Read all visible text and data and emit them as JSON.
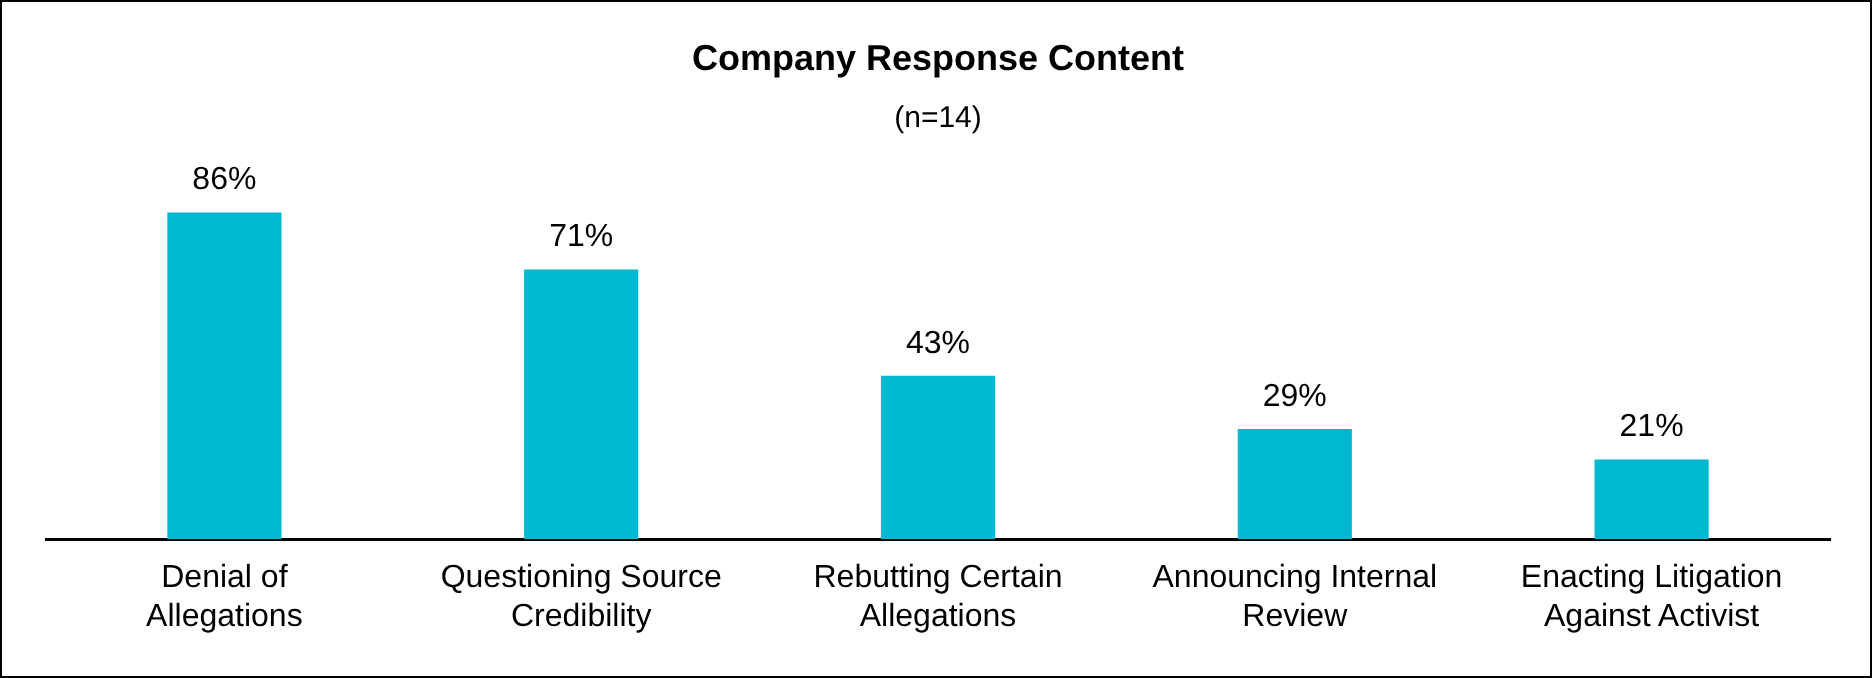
{
  "chart_data": {
    "type": "bar",
    "title": "Company Response Content",
    "subtitle": "(n=14)",
    "categories": [
      "Denial of Allegations",
      "Questioning Source Credibility",
      "Rebutting Certain Allegations",
      "Announcing Internal Review",
      "Enacting Litigation Against Activist"
    ],
    "values": [
      86,
      71,
      43,
      29,
      21
    ],
    "value_labels": [
      "86%",
      "71%",
      "43%",
      "29%",
      "21%"
    ],
    "color": "#00b8d0",
    "legend": false,
    "grid": false
  }
}
